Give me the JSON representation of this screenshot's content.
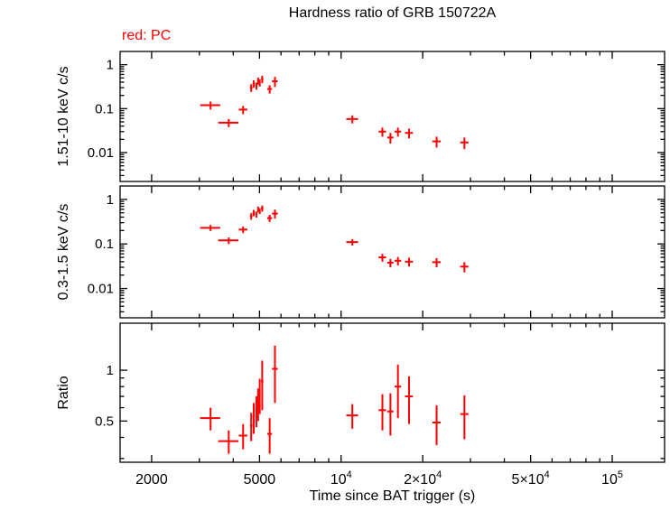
{
  "chart_data": {
    "type": "scatter",
    "title": "Hardness ratio of GRB 150722A",
    "legend": "red: PC",
    "xlabel": "Time since BAT trigger (s)",
    "xscale": "log",
    "xlim": [
      1530,
      156000
    ],
    "point_color": "#ff0000",
    "axis_color": "#000000",
    "x_ticks": [
      {
        "value": 2000,
        "label": "2000"
      },
      {
        "value": 5000,
        "label": "5000"
      },
      {
        "value": 10000,
        "label": "10",
        "sup": "4"
      },
      {
        "value": 20000,
        "label": "2×10",
        "sup": "4"
      },
      {
        "value": 50000,
        "label": "5×10",
        "sup": "4"
      },
      {
        "value": 100000,
        "label": "10",
        "sup": "5"
      }
    ],
    "time_s": [
      3300,
      3850,
      4350,
      4660,
      4760,
      4870,
      4940,
      5010,
      5115,
      5450,
      5700,
      11000,
      14200,
      15200,
      16200,
      17800,
      22500,
      28500
    ],
    "time_err_s": [
      280,
      330,
      160,
      50,
      45,
      45,
      35,
      35,
      55,
      110,
      140,
      550,
      450,
      400,
      450,
      600,
      800,
      1000
    ],
    "panels": [
      {
        "name": "hard-band",
        "ylabel": "1.51-10 keV c/s",
        "yscale": "log",
        "ylim": [
          0.0022,
          2.0
        ],
        "y_ticks": [
          {
            "value": 1,
            "label": "1"
          },
          {
            "value": 0.1,
            "label": "0.1"
          },
          {
            "value": 0.01,
            "label": "0.01"
          }
        ],
        "values": [
          0.12,
          0.048,
          0.095,
          0.3,
          0.37,
          0.33,
          0.43,
          0.39,
          0.47,
          0.28,
          0.42,
          0.058,
          0.03,
          0.022,
          0.03,
          0.028,
          0.018,
          0.017
        ],
        "errors": [
          0.025,
          0.01,
          0.02,
          0.06,
          0.07,
          0.06,
          0.08,
          0.07,
          0.09,
          0.06,
          0.11,
          0.012,
          0.007,
          0.006,
          0.007,
          0.007,
          0.005,
          0.005
        ]
      },
      {
        "name": "soft-band",
        "ylabel": "0.3-1.5 keV c/s",
        "yscale": "log",
        "ylim": [
          0.0022,
          2.0
        ],
        "y_ticks": [
          {
            "value": 1,
            "label": "1"
          },
          {
            "value": 0.1,
            "label": "0.1"
          },
          {
            "value": 0.01,
            "label": "0.01"
          }
        ],
        "values": [
          0.23,
          0.12,
          0.21,
          0.42,
          0.5,
          0.46,
          0.6,
          0.55,
          0.63,
          0.38,
          0.48,
          0.11,
          0.05,
          0.038,
          0.042,
          0.04,
          0.039,
          0.031
        ],
        "errors": [
          0.035,
          0.02,
          0.035,
          0.07,
          0.08,
          0.07,
          0.09,
          0.08,
          0.1,
          0.07,
          0.11,
          0.018,
          0.01,
          0.008,
          0.009,
          0.009,
          0.009,
          0.008
        ]
      },
      {
        "name": "ratio",
        "ylabel": "Ratio",
        "yscale": "log",
        "ylim": [
          0.285,
          1.9
        ],
        "y_ticks": [
          {
            "value": 1,
            "label": "1"
          },
          {
            "value": 0.5,
            "label": "0.5"
          }
        ],
        "values": [
          0.52,
          0.38,
          0.41,
          0.47,
          0.53,
          0.58,
          0.64,
          0.72,
          0.86,
          0.42,
          1.02,
          0.54,
          0.58,
          0.57,
          0.8,
          0.7,
          0.49,
          0.55
        ],
        "errors": [
          0.08,
          0.06,
          0.07,
          0.09,
          0.11,
          0.12,
          0.14,
          0.17,
          0.28,
          0.1,
          0.38,
          0.09,
          0.14,
          0.16,
          0.28,
          0.22,
          0.13,
          0.16
        ]
      }
    ]
  }
}
